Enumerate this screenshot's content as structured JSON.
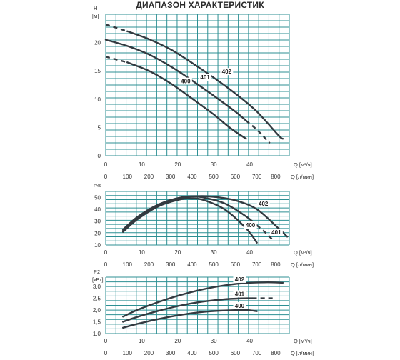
{
  "title": "ДИАПАЗОН ХАРАКТЕРИСТИК",
  "colors": {
    "grid": "#2c8f93",
    "curve": "#333a40",
    "text": "#333333"
  },
  "chart_data": [
    {
      "id": "head",
      "type": "line",
      "ylabel": "H",
      "yunit": "[м]",
      "x_top_label": "Q [м³/ч]",
      "x_bottom_label": "Q [л/мин]",
      "x_top_ticks": [
        0,
        10,
        20,
        30,
        40
      ],
      "x_top_ticklabels": [
        "0",
        "10",
        "20",
        "30",
        "40"
      ],
      "x_bottom_ticks": [
        0,
        100,
        200,
        300,
        400,
        500,
        600,
        700,
        800
      ],
      "x_bottom_ticklabels": [
        "0",
        "100",
        "200",
        "300",
        "400",
        "500",
        "600",
        "700",
        "800"
      ],
      "xlim": [
        0,
        850
      ],
      "ylim": [
        0,
        25
      ],
      "y_ticks": [
        0,
        5,
        10,
        15,
        20
      ],
      "y_ticklabels": [
        "0",
        "5",
        "10",
        "15",
        "20"
      ],
      "grid": true,
      "series": [
        {
          "name": "400",
          "x": [
            0,
            100,
            200,
            300,
            400,
            500,
            580,
            650
          ],
          "y": [
            17.5,
            16.5,
            15,
            12.8,
            10.1,
            7.3,
            4.8,
            3
          ],
          "dash_to": 100
        },
        {
          "name": "401",
          "x": [
            0,
            100,
            200,
            300,
            400,
            500,
            600,
            700,
            760
          ],
          "y": [
            20.5,
            19.4,
            17.9,
            15.8,
            13.3,
            10.6,
            7.8,
            4.6,
            2.2
          ],
          "dash_from": 650
        },
        {
          "name": "402",
          "x": [
            0,
            100,
            200,
            300,
            400,
            500,
            600,
            700,
            800,
            820
          ],
          "y": [
            23.2,
            22,
            20.6,
            18.8,
            16.4,
            13.8,
            11,
            7.8,
            3.6,
            3
          ],
          "dash_to": 100
        }
      ],
      "labels": [
        {
          "name": "400",
          "x": 370,
          "y": 12.8
        },
        {
          "name": "401",
          "x": 460,
          "y": 13.5
        },
        {
          "name": "402",
          "x": 560,
          "y": 14.5
        }
      ]
    },
    {
      "id": "efficiency",
      "type": "line",
      "ylabel": "η%",
      "x_top_label": "Q [м³/ч]",
      "x_bottom_label": "Q [л/мин]",
      "x_top_ticks": [
        0,
        10,
        20,
        30,
        40
      ],
      "x_top_ticklabels": [
        "0",
        "10",
        "20",
        "30",
        "40"
      ],
      "x_bottom_ticks": [
        0,
        100,
        200,
        300,
        400,
        500,
        600,
        700,
        800
      ],
      "x_bottom_ticklabels": [
        "0",
        "100",
        "200",
        "300",
        "400",
        "500",
        "600",
        "700",
        "800"
      ],
      "xlim": [
        0,
        850
      ],
      "ylim": [
        10,
        55
      ],
      "y_ticks": [
        10,
        20,
        30,
        40,
        50
      ],
      "y_ticklabels": [
        "10",
        "20",
        "30",
        "40",
        "50"
      ],
      "grid": true,
      "series": [
        {
          "name": "400",
          "x": [
            80,
            150,
            250,
            350,
            400,
            450,
            550,
            650,
            700
          ],
          "y": [
            21,
            32,
            43,
            48.5,
            49,
            48,
            40,
            24,
            12
          ]
        },
        {
          "name": "401",
          "x": [
            80,
            150,
            250,
            350,
            400,
            450,
            550,
            650,
            730,
            770
          ],
          "y": [
            22,
            33,
            44,
            49.5,
            50.5,
            50,
            45,
            34,
            22,
            15
          ],
          "dash_from": 700
        },
        {
          "name": "402",
          "x": [
            80,
            150,
            250,
            350,
            430,
            500,
            600,
            700,
            800,
            840
          ],
          "y": [
            23,
            34,
            44.5,
            50,
            51,
            50.5,
            47.5,
            40,
            24,
            17
          ]
        }
      ],
      "labels": [
        {
          "name": "402",
          "x": 730,
          "y": 43
        },
        {
          "name": "400",
          "x": 670,
          "y": 25
        },
        {
          "name": "401",
          "x": 790,
          "y": 19
        }
      ]
    },
    {
      "id": "power",
      "type": "line",
      "ylabel": "P2",
      "yunit": "[кВт]",
      "x_top_label": "Q [м³/ч]",
      "x_bottom_label": "Q [л/мин]",
      "x_top_ticks": [
        0,
        10,
        20,
        30,
        40
      ],
      "x_top_ticklabels": [
        "0",
        "10",
        "20",
        "30",
        "40"
      ],
      "x_bottom_ticks": [
        0,
        100,
        200,
        300,
        400,
        500,
        600,
        700,
        800
      ],
      "x_bottom_ticklabels": [
        "0",
        "100",
        "200",
        "300",
        "400",
        "500",
        "600",
        "700",
        "800"
      ],
      "xlim": [
        0,
        850
      ],
      "ylim": [
        1.0,
        3.4
      ],
      "y_ticks": [
        1.0,
        1.5,
        2.0,
        2.5,
        3.0
      ],
      "y_ticklabels": [
        "1,0",
        "1,5",
        "2,0",
        "2,5",
        "3,0"
      ],
      "grid": true,
      "series": [
        {
          "name": "400",
          "x": [
            80,
            150,
            250,
            350,
            450,
            550,
            650,
            700
          ],
          "y": [
            1.25,
            1.42,
            1.63,
            1.8,
            1.92,
            1.98,
            2.0,
            1.95
          ]
        },
        {
          "name": "401",
          "x": [
            80,
            150,
            250,
            350,
            450,
            550,
            650,
            740,
            790
          ],
          "y": [
            1.5,
            1.72,
            1.98,
            2.2,
            2.36,
            2.46,
            2.5,
            2.5,
            2.5
          ],
          "dash_from": 680
        },
        {
          "name": "402",
          "x": [
            80,
            150,
            250,
            350,
            450,
            550,
            650,
            750,
            820
          ],
          "y": [
            1.72,
            2.02,
            2.36,
            2.65,
            2.88,
            3.05,
            3.15,
            3.18,
            3.16
          ]
        }
      ],
      "labels": [
        {
          "name": "402",
          "x": 620,
          "y": 3.22
        },
        {
          "name": "401",
          "x": 620,
          "y": 2.6
        },
        {
          "name": "400",
          "x": 620,
          "y": 2.1
        }
      ]
    }
  ]
}
